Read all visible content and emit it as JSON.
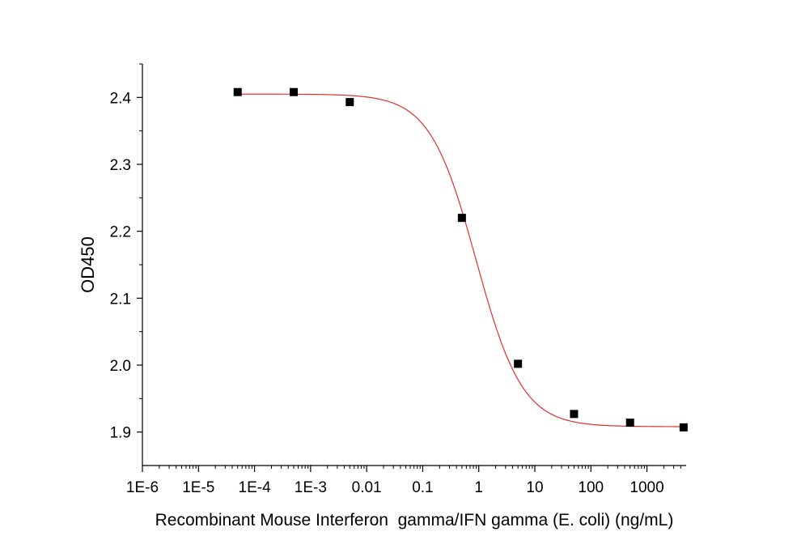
{
  "chart_data": {
    "type": "scatter",
    "title": "",
    "xlabel": "Recombinant Mouse Interferon  gamma/IFN gamma (E. coli) (ng/mL)",
    "ylabel": "OD450",
    "x_scale": "log",
    "xlim": [
      1e-06,
      5000
    ],
    "ylim": [
      1.85,
      2.45
    ],
    "x_ticks": [
      1e-06,
      1e-05,
      0.0001,
      0.001,
      0.01,
      0.1,
      1,
      10,
      100,
      1000
    ],
    "x_tick_labels": [
      "1E-6",
      "1E-5",
      "1E-4",
      "1E-3",
      "0.01",
      "0.1",
      "1",
      "10",
      "100",
      "1000"
    ],
    "y_ticks": [
      1.9,
      2.0,
      2.1,
      2.2,
      2.3,
      2.4
    ],
    "y_tick_labels": [
      "1.9",
      "2.0",
      "2.1",
      "2.2",
      "2.3",
      "2.4"
    ],
    "grid": false,
    "legend": "none",
    "series": [
      {
        "marker": "square",
        "color": "#000000",
        "x": [
          5e-05,
          0.0005,
          0.005,
          0.5,
          5,
          50,
          500,
          4500
        ],
        "y": [
          2.408,
          2.408,
          2.393,
          2.22,
          2.002,
          1.927,
          1.914,
          1.907
        ]
      }
    ],
    "fit_curve": {
      "model": "4PL",
      "color": "#e03030",
      "top": 2.405,
      "bottom": 1.908,
      "ec50": 0.9,
      "hill": 1.05,
      "x_range": [
        5e-05,
        4500
      ]
    }
  }
}
